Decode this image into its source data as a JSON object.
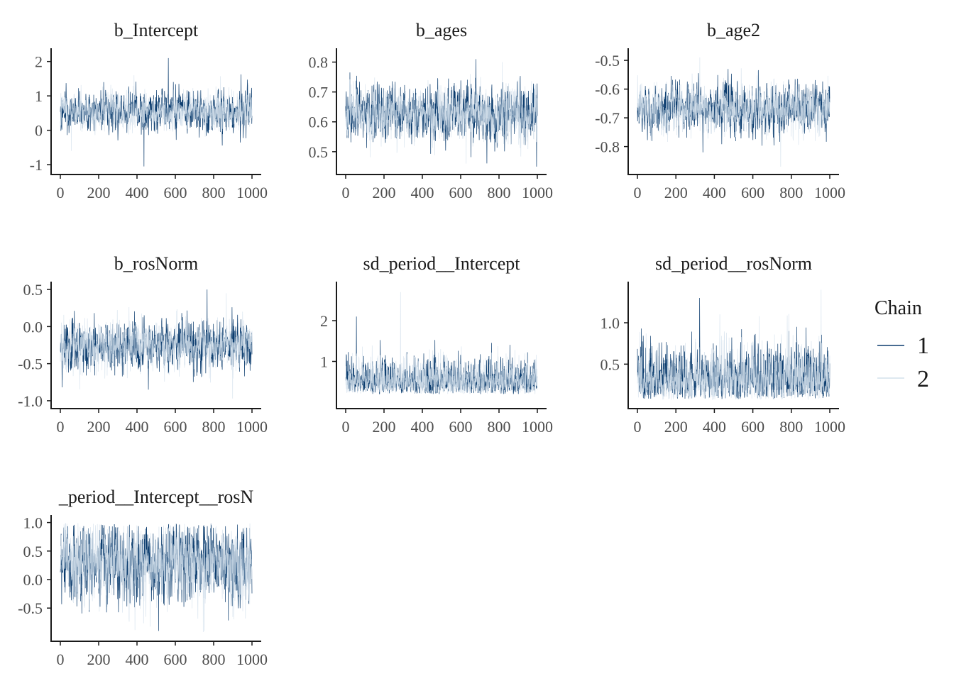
{
  "colors": {
    "chain1": "#0b3c6e",
    "chain2": "#d3e0ec",
    "axis": "#1a1a1a",
    "tick_text": "#4d4d4d",
    "background": "#ffffff"
  },
  "legend": {
    "title": "Chain",
    "entries": [
      {
        "label": "1",
        "color": "#0b3c6e"
      },
      {
        "label": "2",
        "color": "#d3e0ec"
      }
    ],
    "placement": "right"
  },
  "chart_data": [
    {
      "type": "line",
      "title": "b_Intercept",
      "xlabel": "",
      "ylabel": "",
      "xlim": [
        0,
        1000
      ],
      "ylim": [
        -1.1,
        2.2
      ],
      "xticks": [
        0,
        200,
        400,
        600,
        800,
        1000
      ],
      "xtick_labels": [
        "0",
        "200",
        "400",
        "600",
        "800",
        "1000"
      ],
      "yticks": [
        -1,
        0,
        1,
        2
      ],
      "ytick_labels": [
        "-1",
        "0",
        "1",
        "2"
      ],
      "grid": false,
      "series": [
        {
          "name": "1",
          "n": 1000,
          "mean": 0.55,
          "sd": 0.34,
          "min": -1.05,
          "max": 2.1
        },
        {
          "name": "2",
          "n": 1000,
          "mean": 0.55,
          "sd": 0.32,
          "min": -0.6,
          "max": 1.6
        }
      ]
    },
    {
      "type": "line",
      "title": "b_ages",
      "xlabel": "",
      "ylabel": "",
      "xlim": [
        0,
        1000
      ],
      "ylim": [
        0.445,
        0.825
      ],
      "xticks": [
        0,
        200,
        400,
        600,
        800,
        1000
      ],
      "xtick_labels": [
        "0",
        "200",
        "400",
        "600",
        "800",
        "1000"
      ],
      "yticks": [
        0.5,
        0.6,
        0.7,
        0.8
      ],
      "ytick_labels": [
        "0.5",
        "0.6",
        "0.7",
        "0.8"
      ],
      "grid": false,
      "series": [
        {
          "name": "1",
          "n": 1000,
          "mean": 0.63,
          "sd": 0.055,
          "min": 0.45,
          "max": 0.81
        },
        {
          "name": "2",
          "n": 1000,
          "mean": 0.63,
          "sd": 0.055,
          "min": 0.46,
          "max": 0.8
        }
      ]
    },
    {
      "type": "line",
      "title": "b_age2",
      "xlabel": "",
      "ylabel": "",
      "xlim": [
        0,
        1000
      ],
      "ylim": [
        -0.875,
        -0.48
      ],
      "xticks": [
        0,
        200,
        400,
        600,
        800,
        1000
      ],
      "xtick_labels": [
        "0",
        "200",
        "400",
        "600",
        "800",
        "1000"
      ],
      "yticks": [
        -0.8,
        -0.7,
        -0.6,
        -0.5
      ],
      "ytick_labels": [
        "-0.8",
        "-0.7",
        "-0.6",
        "-0.5"
      ],
      "grid": false,
      "series": [
        {
          "name": "1",
          "n": 1000,
          "mean": -0.67,
          "sd": 0.05,
          "min": -0.82,
          "max": -0.53
        },
        {
          "name": "2",
          "n": 1000,
          "mean": -0.67,
          "sd": 0.05,
          "min": -0.87,
          "max": -0.49
        }
      ]
    },
    {
      "type": "line",
      "title": "b_rosNorm",
      "xlabel": "",
      "ylabel": "",
      "xlim": [
        0,
        1000
      ],
      "ylim": [
        -1.02,
        0.52
      ],
      "xticks": [
        0,
        200,
        400,
        600,
        800,
        1000
      ],
      "xtick_labels": [
        "0",
        "200",
        "400",
        "600",
        "800",
        "1000"
      ],
      "yticks": [
        -1.0,
        -0.5,
        0.0,
        0.5
      ],
      "ytick_labels": [
        "-1.0",
        "-0.5",
        "0.0",
        "0.5"
      ],
      "grid": false,
      "series": [
        {
          "name": "1",
          "n": 1000,
          "mean": -0.25,
          "sd": 0.2,
          "min": -0.85,
          "max": 0.5
        },
        {
          "name": "2",
          "n": 1000,
          "mean": -0.25,
          "sd": 0.2,
          "min": -0.97,
          "max": 0.45
        }
      ]
    },
    {
      "type": "line",
      "title": "sd_period__Intercept",
      "xlabel": "",
      "ylabel": "",
      "xlim": [
        0,
        1000
      ],
      "ylim": [
        0.0,
        2.8
      ],
      "xticks": [
        0,
        200,
        400,
        600,
        800,
        1000
      ],
      "xtick_labels": [
        "0",
        "200",
        "400",
        "600",
        "800",
        "1000"
      ],
      "yticks": [
        1,
        2
      ],
      "ytick_labels": [
        "1",
        "2"
      ],
      "grid": false,
      "series": [
        {
          "name": "1",
          "n": 1000,
          "mean": 0.6,
          "sd": 0.3,
          "min": 0.2,
          "max": 2.1
        },
        {
          "name": "2",
          "n": 1000,
          "mean": 0.6,
          "sd": 0.3,
          "min": 0.2,
          "max": 2.7
        }
      ]
    },
    {
      "type": "line",
      "title": "sd_period__rosNorm",
      "xlabel": "",
      "ylabel": "",
      "xlim": [
        0,
        1000
      ],
      "ylim": [
        0.04,
        1.42
      ],
      "xticks": [
        0,
        200,
        400,
        600,
        800,
        1000
      ],
      "xtick_labels": [
        "0",
        "200",
        "400",
        "600",
        "800",
        "1000"
      ],
      "yticks": [
        0.5,
        1.0
      ],
      "ytick_labels": [
        "0.5",
        "1.0"
      ],
      "grid": false,
      "series": [
        {
          "name": "1",
          "n": 1000,
          "mean": 0.55,
          "sd": 0.22,
          "min": 0.08,
          "max": 1.3
        },
        {
          "name": "2",
          "n": 1000,
          "mean": 0.55,
          "sd": 0.22,
          "min": 0.07,
          "max": 1.4
        }
      ]
    },
    {
      "type": "line",
      "title": "_period__Intercept__rosN",
      "xlabel": "",
      "ylabel": "",
      "xlim": [
        0,
        1000
      ],
      "ylim": [
        -0.97,
        1.02
      ],
      "xticks": [
        0,
        200,
        400,
        600,
        800,
        1000
      ],
      "xtick_labels": [
        "0",
        "200",
        "400",
        "600",
        "800",
        "1000"
      ],
      "yticks": [
        -0.5,
        0.0,
        0.5,
        1.0
      ],
      "ytick_labels": [
        "-0.5",
        "0.0",
        "0.5",
        "1.0"
      ],
      "grid": false,
      "series": [
        {
          "name": "1",
          "n": 1000,
          "mean": 0.3,
          "sd": 0.42,
          "min": -0.9,
          "max": 0.98
        },
        {
          "name": "2",
          "n": 1000,
          "mean": 0.3,
          "sd": 0.42,
          "min": -0.92,
          "max": 0.99
        }
      ]
    }
  ]
}
